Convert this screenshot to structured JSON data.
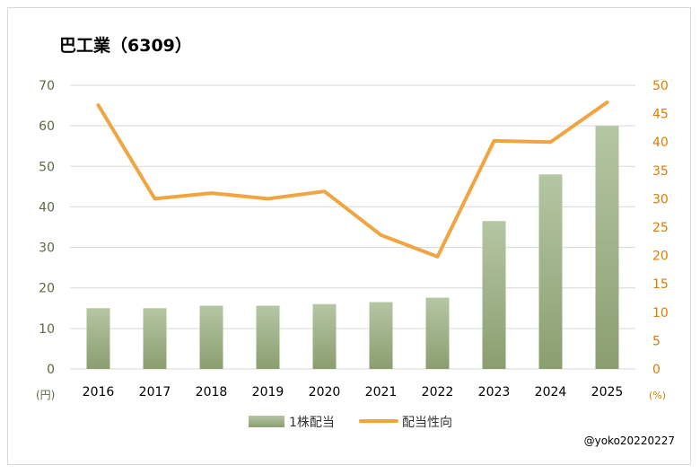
{
  "chart_data": {
    "type": "bar+line",
    "title": "巴工業（6309）",
    "categories": [
      "2016",
      "2017",
      "2018",
      "2019",
      "2020",
      "2021",
      "2022",
      "2023",
      "2024",
      "2025"
    ],
    "series": [
      {
        "name": "1株配当",
        "type": "bar",
        "axis": "left",
        "values": [
          15,
          15,
          15.6,
          15.6,
          16,
          16.5,
          17.6,
          36.5,
          48,
          60
        ]
      },
      {
        "name": "配当性向",
        "type": "line",
        "axis": "right",
        "values": [
          46.5,
          30,
          31,
          30,
          31.3,
          23.6,
          19.8,
          40.2,
          40,
          47
        ]
      }
    ],
    "y_left": {
      "min": 0,
      "max": 70,
      "ticks": [
        "0",
        "10",
        "20",
        "30",
        "40",
        "50",
        "60",
        "70"
      ],
      "unit": "(円)"
    },
    "y_right": {
      "min": 0,
      "max": 50,
      "ticks": [
        "0",
        "5",
        "10",
        "15",
        "20",
        "25",
        "30",
        "35",
        "40",
        "45",
        "50"
      ],
      "unit": "(%)"
    },
    "grid": true,
    "legend": "bottom",
    "colors": {
      "bar_top": "#b2c3a0",
      "bar_bottom": "#8ea074",
      "line": "#f0a541",
      "left_axis": "#5b6a41",
      "right_axis": "#e07b00"
    },
    "credit": "@yoko20220227"
  }
}
